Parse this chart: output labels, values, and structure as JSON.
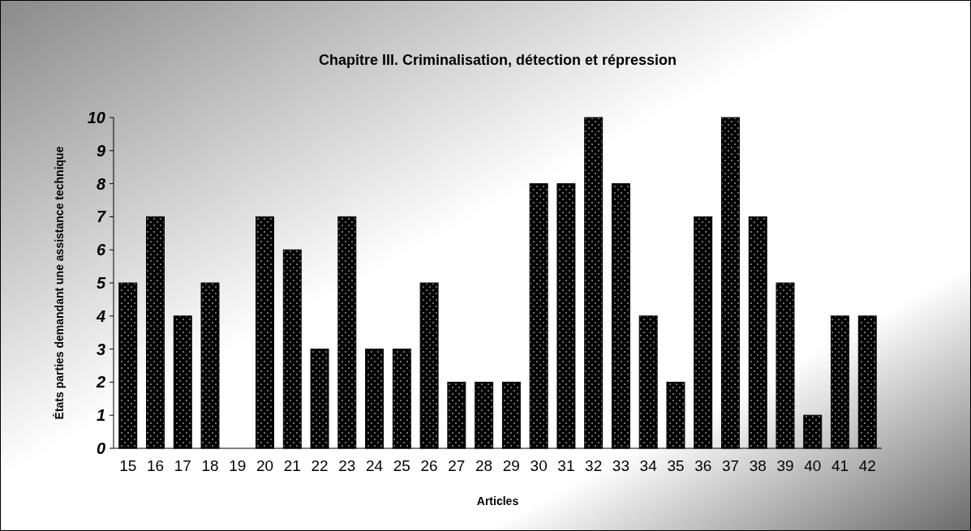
{
  "chart_data": {
    "type": "bar",
    "title": "Chapitre III. Criminalisation, détection et répression",
    "xlabel": "Articles",
    "ylabel": "États parties demandant une assistance technique",
    "categories": [
      "15",
      "16",
      "17",
      "18",
      "19",
      "20",
      "21",
      "22",
      "23",
      "24",
      "25",
      "26",
      "27",
      "28",
      "29",
      "30",
      "31",
      "32",
      "33",
      "34",
      "35",
      "36",
      "37",
      "38",
      "39",
      "40",
      "41",
      "42"
    ],
    "values": [
      5,
      7,
      4,
      5,
      0,
      7,
      6,
      3,
      7,
      3,
      3,
      5,
      2,
      2,
      2,
      8,
      8,
      10,
      8,
      4,
      2,
      7,
      10,
      7,
      5,
      1,
      4,
      4
    ],
    "color": "#000000",
    "ylim": [
      0,
      10
    ],
    "yticks": [
      0,
      1,
      2,
      3,
      4,
      5,
      6,
      7,
      8,
      9,
      10
    ],
    "grid": false
  }
}
